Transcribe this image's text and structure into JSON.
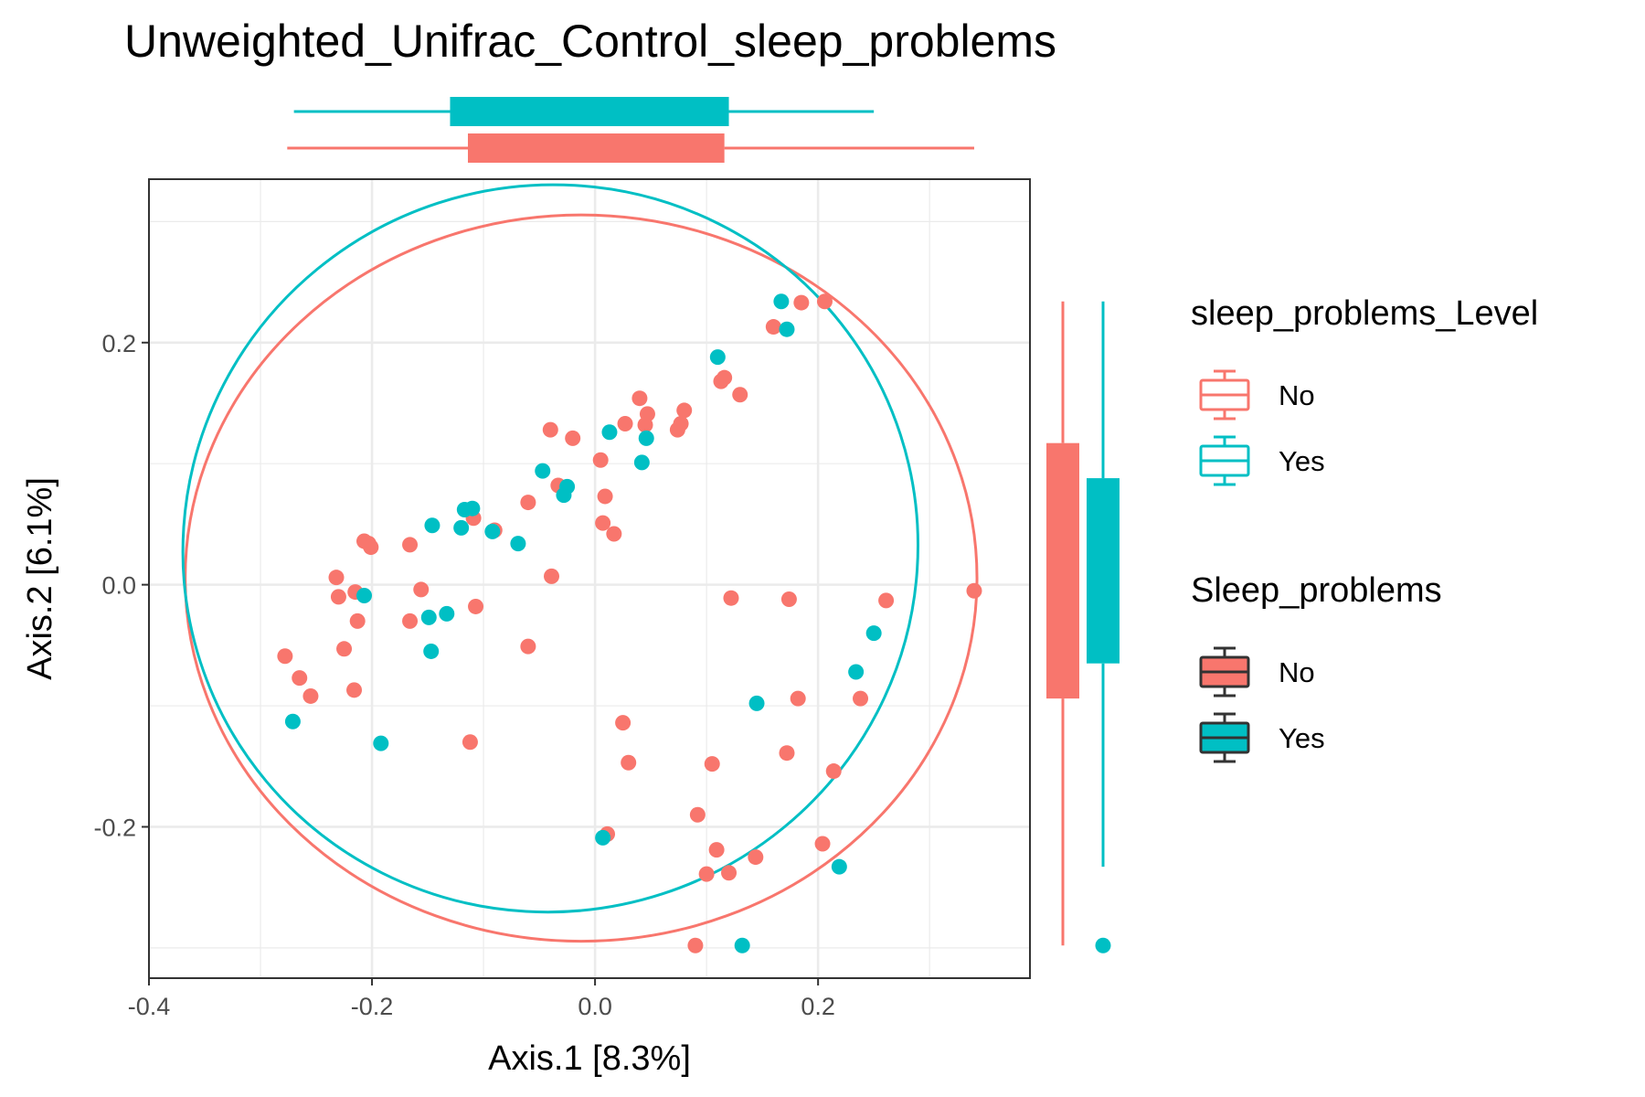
{
  "colors": {
    "no": "#F8766D",
    "yes": "#00BFC4",
    "outline": "#333333",
    "grid": "#EBEBEB",
    "panel_border": "#333333"
  },
  "chart_data": {
    "type": "scatter",
    "title": "Unweighted_Unifrac_Control_sleep_problems",
    "xlabel": "Axis.1   [8.3%]",
    "ylabel": "Axis.2   [6.1%]",
    "xlim": [
      -0.4,
      0.39
    ],
    "ylim": [
      -0.325,
      0.335
    ],
    "x_ticks": [
      -0.4,
      -0.2,
      0.0,
      0.2
    ],
    "x_tick_labels": [
      "-0.4",
      "-0.2",
      "0.0",
      "0.2"
    ],
    "y_ticks": [
      -0.2,
      0.0,
      0.2
    ],
    "y_tick_labels": [
      "-0.2",
      "0.0",
      "0.2"
    ],
    "grid": true,
    "legend_position": "right",
    "series": [
      {
        "name": "No",
        "color": "#F8766D",
        "points": [
          [
            -0.278,
            -0.059
          ],
          [
            -0.265,
            -0.077
          ],
          [
            -0.255,
            -0.092
          ],
          [
            -0.232,
            0.006
          ],
          [
            -0.23,
            -0.01
          ],
          [
            -0.225,
            -0.053
          ],
          [
            -0.215,
            -0.006
          ],
          [
            -0.213,
            -0.03
          ],
          [
            -0.216,
            -0.087
          ],
          [
            -0.207,
            0.036
          ],
          [
            -0.203,
            0.034
          ],
          [
            -0.201,
            0.031
          ],
          [
            -0.166,
            0.033
          ],
          [
            -0.166,
            -0.03
          ],
          [
            -0.156,
            -0.004
          ],
          [
            -0.112,
            -0.13
          ],
          [
            -0.109,
            0.055
          ],
          [
            -0.107,
            -0.018
          ],
          [
            -0.09,
            0.045
          ],
          [
            -0.06,
            0.068
          ],
          [
            -0.06,
            -0.051
          ],
          [
            -0.04,
            0.128
          ],
          [
            -0.039,
            0.007
          ],
          [
            -0.033,
            0.082
          ],
          [
            -0.02,
            0.121
          ],
          [
            0.005,
            0.103
          ],
          [
            0.007,
            0.051
          ],
          [
            0.009,
            0.073
          ],
          [
            0.017,
            0.042
          ],
          [
            0.025,
            -0.114
          ],
          [
            0.03,
            -0.147
          ],
          [
            0.027,
            0.133
          ],
          [
            0.04,
            0.154
          ],
          [
            0.045,
            0.132
          ],
          [
            0.047,
            0.141
          ],
          [
            0.074,
            0.128
          ],
          [
            0.077,
            0.133
          ],
          [
            0.08,
            0.144
          ],
          [
            0.113,
            0.168
          ],
          [
            0.116,
            0.171
          ],
          [
            0.13,
            0.157
          ],
          [
            0.122,
            -0.011
          ],
          [
            0.092,
            -0.19
          ],
          [
            0.1,
            -0.239
          ],
          [
            0.105,
            -0.148
          ],
          [
            0.109,
            -0.219
          ],
          [
            0.12,
            -0.238
          ],
          [
            0.144,
            -0.225
          ],
          [
            0.16,
            0.213
          ],
          [
            0.172,
            -0.139
          ],
          [
            0.174,
            -0.012
          ],
          [
            0.182,
            -0.094
          ],
          [
            0.185,
            0.233
          ],
          [
            0.204,
            -0.214
          ],
          [
            0.206,
            0.234
          ],
          [
            0.214,
            -0.154
          ],
          [
            0.238,
            -0.094
          ],
          [
            0.261,
            -0.013
          ],
          [
            0.34,
            -0.005
          ],
          [
            0.09,
            -0.298
          ],
          [
            0.011,
            -0.206
          ]
        ]
      },
      {
        "name": "Yes",
        "color": "#00BFC4",
        "points": [
          [
            -0.271,
            -0.113
          ],
          [
            -0.207,
            -0.009
          ],
          [
            -0.192,
            -0.131
          ],
          [
            -0.149,
            -0.027
          ],
          [
            -0.147,
            -0.055
          ],
          [
            -0.146,
            0.049
          ],
          [
            -0.133,
            -0.024
          ],
          [
            -0.12,
            0.047
          ],
          [
            -0.117,
            0.062
          ],
          [
            -0.11,
            0.063
          ],
          [
            -0.092,
            0.044
          ],
          [
            -0.069,
            0.034
          ],
          [
            -0.047,
            0.094
          ],
          [
            -0.028,
            0.074
          ],
          [
            -0.025,
            0.081
          ],
          [
            0.013,
            0.126
          ],
          [
            0.042,
            0.101
          ],
          [
            0.046,
            0.121
          ],
          [
            0.11,
            0.188
          ],
          [
            0.145,
            -0.098
          ],
          [
            0.167,
            0.234
          ],
          [
            0.172,
            0.211
          ],
          [
            0.219,
            -0.233
          ],
          [
            0.234,
            -0.072
          ],
          [
            0.25,
            -0.04
          ],
          [
            0.132,
            -0.298
          ],
          [
            0.007,
            -0.209
          ]
        ]
      }
    ],
    "ellipses": [
      {
        "group": "No",
        "center": [
          -0.0125,
          0.0055
        ],
        "rx": 0.355,
        "ry": 0.3
      },
      {
        "group": "Yes",
        "center": [
          -0.04,
          0.03
        ],
        "rx": 0.33,
        "ry": 0.3,
        "rotation_deg": -18
      }
    ],
    "marginal_boxplots_axis1": [
      {
        "group": "Yes",
        "whisker_low": -0.27,
        "q1": -0.13,
        "q3": 0.12,
        "whisker_high": 0.25
      },
      {
        "group": "No",
        "whisker_low": -0.276,
        "q1": -0.114,
        "q3": 0.116,
        "whisker_high": 0.34
      }
    ],
    "marginal_boxplots_axis2": [
      {
        "group": "No",
        "whisker_low": -0.298,
        "q1": -0.094,
        "q3": 0.117,
        "whisker_high": 0.234
      },
      {
        "group": "Yes",
        "whisker_low": -0.233,
        "q1": -0.065,
        "q3": 0.088,
        "whisker_high": 0.234,
        "outliers": [
          -0.298
        ]
      }
    ],
    "legend": [
      {
        "title": "sleep_problems_Level",
        "items": [
          "No",
          "Yes"
        ],
        "style": "outline"
      },
      {
        "title": "Sleep_problems",
        "items": [
          "No",
          "Yes"
        ],
        "style": "filled"
      }
    ]
  }
}
